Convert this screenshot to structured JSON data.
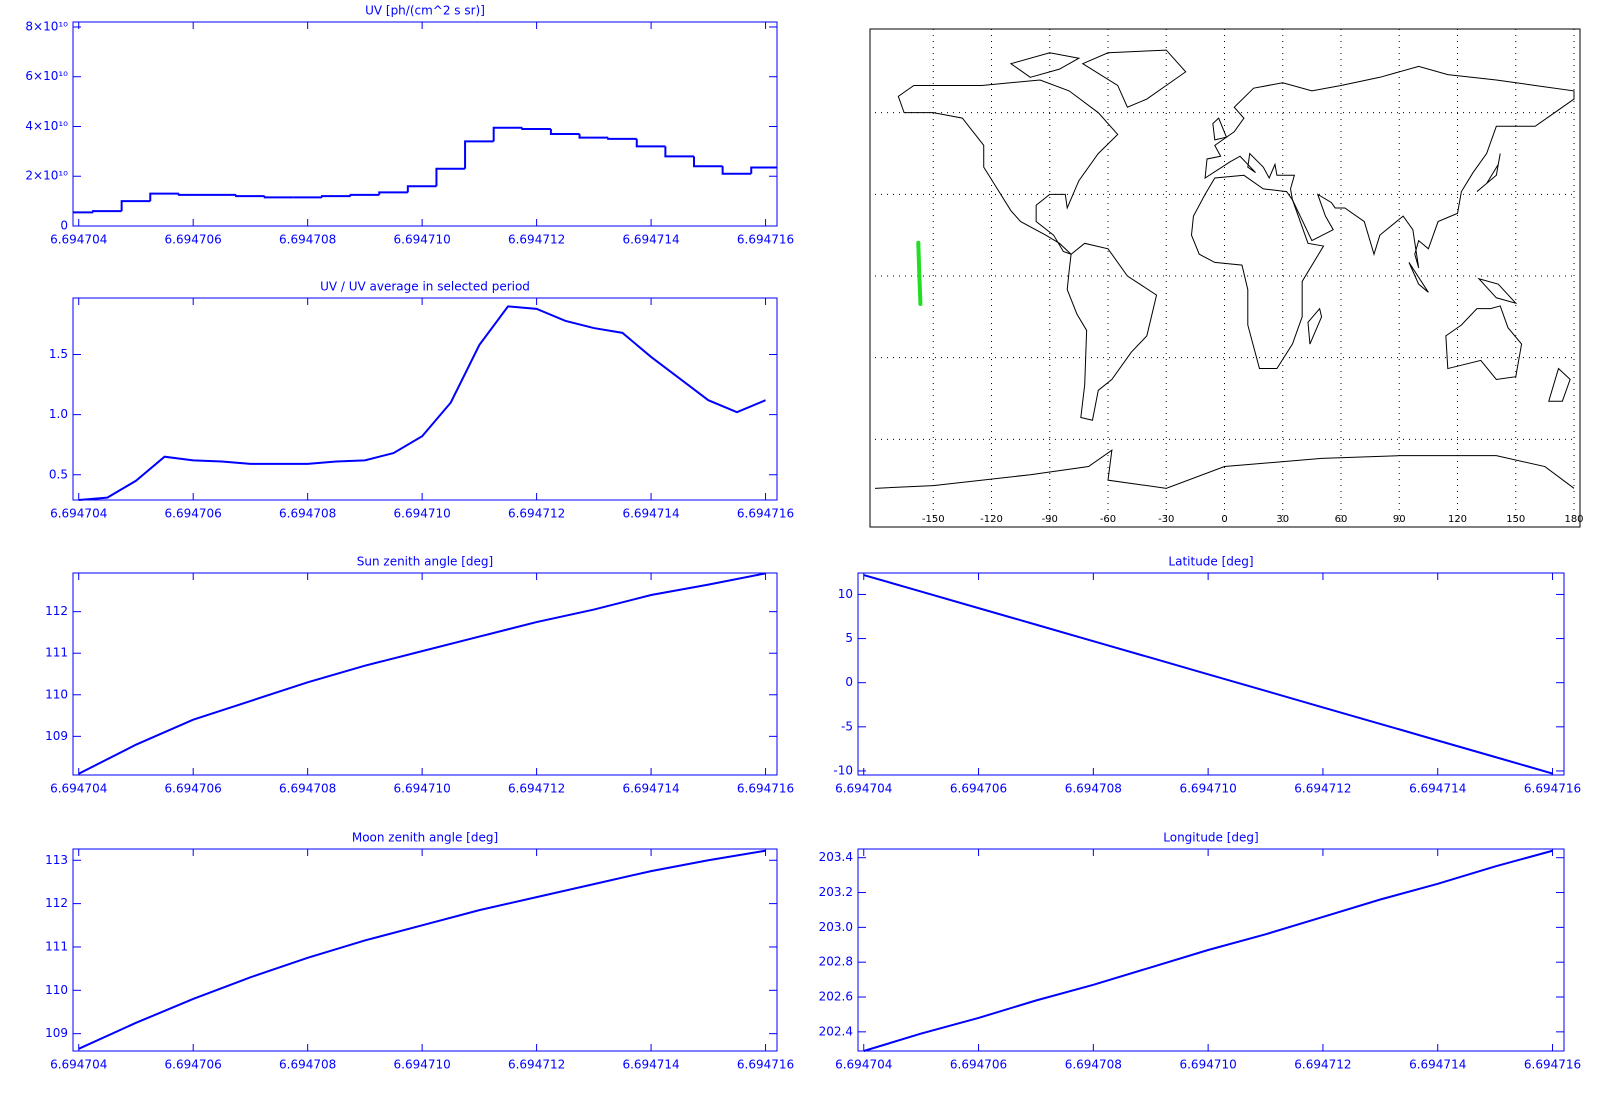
{
  "chart_data": [
    {
      "type": "line",
      "drawstyle": "steps-mid",
      "title": "UV [ph/(cm^2 s sr)]",
      "color": "#0000ff",
      "x": [
        6.694704,
        6.6947045,
        6.694705,
        6.6947055,
        6.694706,
        6.6947065,
        6.694707,
        6.6947075,
        6.694708,
        6.6947085,
        6.694709,
        6.6947095,
        6.69471,
        6.6947105,
        6.694711,
        6.6947115,
        6.694712,
        6.6947125,
        6.694713,
        6.6947135,
        6.694714,
        6.6947145,
        6.694715,
        6.6947155,
        6.694716
      ],
      "values": [
        5500000000,
        6000000000,
        10000000000,
        13000000000,
        12500000000,
        12500000000,
        12000000000,
        11500000000,
        11500000000,
        12000000000,
        12500000000,
        13500000000,
        16000000000,
        23000000000,
        34000000000,
        39500000000,
        39000000000,
        37000000000,
        35500000000,
        35000000000,
        32000000000,
        28000000000,
        24000000000,
        21000000000,
        23500000000
      ],
      "xlim": [
        6.6947039,
        6.6947162
      ],
      "ylim": [
        0,
        82000000000
      ],
      "xticks": [
        6.694704,
        6.694706,
        6.694708,
        {
          "value": 6.69471,
          "label": "6.694710"
        },
        6.694712,
        6.694714,
        6.694716
      ],
      "yticks": [
        0,
        {
          "value": 20000000000,
          "label": "2×10¹⁰"
        },
        {
          "value": 40000000000,
          "label": "4×10¹⁰"
        },
        {
          "value": 60000000000,
          "label": "6×10¹⁰"
        },
        {
          "value": 80000000000,
          "label": "8×10¹⁰"
        }
      ]
    },
    {
      "type": "line",
      "title": "UV / UV average in selected period",
      "color": "#0000ff",
      "x": [
        6.694704,
        6.6947045,
        6.694705,
        6.6947055,
        6.694706,
        6.6947065,
        6.694707,
        6.6947075,
        6.694708,
        6.6947085,
        6.694709,
        6.6947095,
        6.69471,
        6.6947105,
        6.694711,
        6.6947115,
        6.694712,
        6.6947125,
        6.694713,
        6.6947135,
        6.694714,
        6.6947145,
        6.694715,
        6.6947155,
        6.694716
      ],
      "values": [
        0.29,
        0.31,
        0.45,
        0.65,
        0.62,
        0.61,
        0.59,
        0.59,
        0.59,
        0.61,
        0.62,
        0.68,
        0.82,
        1.1,
        1.58,
        1.9,
        1.88,
        1.78,
        1.72,
        1.68,
        1.48,
        1.3,
        1.12,
        1.02,
        1.12
      ],
      "xlim": [
        6.6947039,
        6.6947162
      ],
      "ylim": [
        0.29,
        1.97
      ],
      "xticks": [
        6.694704,
        6.694706,
        6.694708,
        {
          "value": 6.69471,
          "label": "6.694710"
        },
        6.694712,
        6.694714,
        6.694716
      ],
      "yticks": [
        0.5,
        {
          "value": 1,
          "label": "1.0"
        },
        1.5
      ]
    },
    {
      "type": "map",
      "xlim": [
        -180,
        180
      ],
      "ylim": [
        -90,
        90
      ],
      "xticks": [
        -150,
        -120,
        -90,
        -60,
        -30,
        0,
        30,
        60,
        90,
        120,
        150,
        180
      ],
      "track_color": "#22dd22",
      "lon": [
        -157.7,
        -157.2,
        -156.6
      ],
      "lat": [
        12.2,
        0.95,
        -10.3
      ]
    },
    {
      "type": "line",
      "title": "Sun zenith angle [deg]",
      "color": "#0000ff",
      "x": [
        6.694704,
        6.694705,
        6.694706,
        6.694707,
        6.694708,
        6.694709,
        6.69471,
        6.694711,
        6.694712,
        6.694713,
        6.694714,
        6.694715,
        6.694716
      ],
      "values": [
        108.1,
        108.8,
        109.4,
        109.85,
        110.3,
        110.7,
        111.05,
        111.4,
        111.75,
        112.05,
        112.4,
        112.65,
        112.92
      ],
      "xlim": [
        6.6947039,
        6.6947162
      ],
      "ylim": [
        108.07,
        112.93
      ],
      "xticks": [
        6.694704,
        6.694706,
        6.694708,
        {
          "value": 6.69471,
          "label": "6.694710"
        },
        6.694712,
        6.694714,
        6.694716
      ],
      "yticks": [
        109,
        110,
        111,
        112
      ]
    },
    {
      "type": "line",
      "title": "Latitude [deg]",
      "color": "#0000ff",
      "x": [
        6.694704,
        6.694705,
        6.694706,
        6.694707,
        6.694708,
        6.694709,
        6.69471,
        6.694711,
        6.694712,
        6.694713,
        6.694714,
        6.694715,
        6.694716
      ],
      "values": [
        12.2,
        10.33,
        8.45,
        6.58,
        4.7,
        2.83,
        0.95,
        -0.92,
        -2.8,
        -4.67,
        -6.55,
        -8.42,
        -10.3
      ],
      "xlim": [
        6.6947039,
        6.6947162
      ],
      "ylim": [
        -10.46,
        12.43
      ],
      "xticks": [
        6.694704,
        6.694706,
        6.694708,
        {
          "value": 6.69471,
          "label": "6.694710"
        },
        6.694712,
        6.694714,
        6.694716
      ],
      "yticks": [
        -10,
        -5,
        0,
        5,
        10
      ]
    },
    {
      "type": "line",
      "title": "Moon zenith angle [deg]",
      "color": "#0000ff",
      "x": [
        6.694704,
        6.694705,
        6.694706,
        6.694707,
        6.694708,
        6.694709,
        6.69471,
        6.694711,
        6.694712,
        6.694713,
        6.694714,
        6.694715,
        6.694716
      ],
      "values": [
        108.65,
        109.25,
        109.8,
        110.3,
        110.75,
        111.15,
        111.5,
        111.85,
        112.15,
        112.45,
        112.75,
        113.0,
        113.22
      ],
      "xlim": [
        6.6947039,
        6.6947162
      ],
      "ylim": [
        108.6,
        113.26
      ],
      "xticks": [
        6.694704,
        6.694706,
        6.694708,
        {
          "value": 6.69471,
          "label": "6.694710"
        },
        6.694712,
        6.694714,
        6.694716
      ],
      "yticks": [
        109,
        110,
        111,
        112,
        113
      ]
    },
    {
      "type": "line",
      "title": "Longitude [deg]",
      "color": "#0000ff",
      "x": [
        6.694704,
        6.694705,
        6.694706,
        6.694707,
        6.694708,
        6.694709,
        6.69471,
        6.694711,
        6.694712,
        6.694713,
        6.694714,
        6.694715,
        6.694716
      ],
      "values": [
        202.29,
        202.39,
        202.48,
        202.58,
        202.67,
        202.77,
        202.87,
        202.96,
        203.06,
        203.16,
        203.25,
        203.35,
        203.44
      ],
      "xlim": [
        6.6947039,
        6.6947162
      ],
      "ylim": [
        202.29,
        203.45
      ],
      "xticks": [
        6.694704,
        6.694706,
        6.694708,
        {
          "value": 6.69471,
          "label": "6.694710"
        },
        6.694712,
        6.694714,
        6.694716
      ],
      "yticks": [
        202.4,
        202.6,
        202.8,
        {
          "value": 203,
          "label": "203.0"
        },
        203.2,
        203.4
      ]
    }
  ]
}
